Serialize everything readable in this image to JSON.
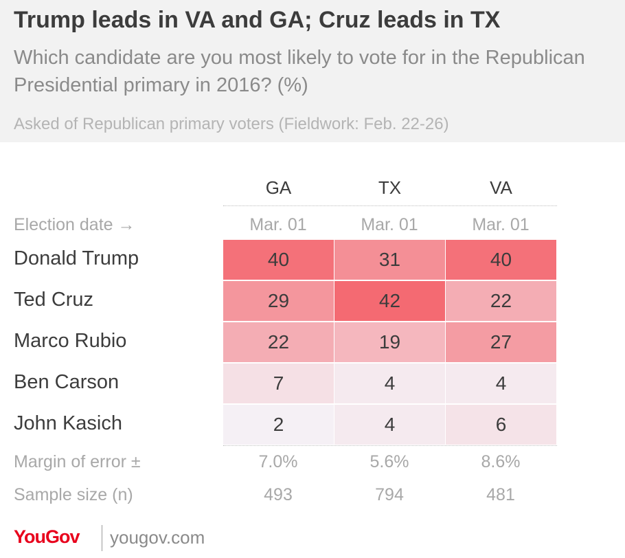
{
  "header": {
    "title": "Trump leads in VA and GA; Cruz leads in TX",
    "subtitle": "Which candidate are you most likely to vote for in the Republican Presidential primary in 2016? (%)",
    "note": "Asked of Republican primary voters (Fieldwork: Feb. 22-26)"
  },
  "chart_data": {
    "type": "heatmap",
    "columns": [
      "GA",
      "TX",
      "VA"
    ],
    "election_date_label": "Election date →",
    "election_dates": [
      "Mar. 01",
      "Mar. 01",
      "Mar. 01"
    ],
    "rows": [
      "Donald Trump",
      "Ted Cruz",
      "Marco Rubio",
      "Ben Carson",
      "John Kasich"
    ],
    "values": [
      [
        40,
        31,
        40
      ],
      [
        29,
        42,
        22
      ],
      [
        22,
        19,
        27
      ],
      [
        7,
        4,
        4
      ],
      [
        2,
        4,
        6
      ]
    ],
    "margin_label": "Margin of error ±",
    "margin_of_error": [
      "7.0%",
      "5.6%",
      "8.6%"
    ],
    "sample_label": "Sample size (n)",
    "sample_size": [
      "493",
      "794",
      "481"
    ],
    "color_scale": {
      "low": "#f5f7fc",
      "high": "#f46a72"
    }
  },
  "footer": {
    "logo": "YouGov",
    "url": "yougov.com"
  }
}
